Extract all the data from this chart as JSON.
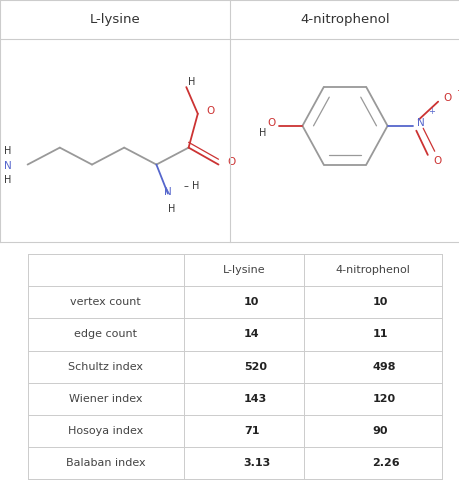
{
  "title_col1": "L-lysine",
  "title_col2": "4-nitrophenol",
  "row_labels": [
    "vertex count",
    "edge count",
    "Schultz index",
    "Wiener index",
    "Hosoya index",
    "Balaban index"
  ],
  "col1_values": [
    "10",
    "14",
    "520",
    "143",
    "71",
    "3.13"
  ],
  "col2_values": [
    "10",
    "11",
    "498",
    "120",
    "90",
    "2.26"
  ],
  "bg_color": "#ffffff",
  "border_color": "#cccccc",
  "table_header_row": [
    "",
    "L-lysine",
    "4-nitrophenol"
  ],
  "gray": "#999999",
  "blue": "#5566cc",
  "red": "#cc3333",
  "dark": "#333333",
  "fig_w": 4.6,
  "fig_h": 4.84,
  "dpi": 100
}
